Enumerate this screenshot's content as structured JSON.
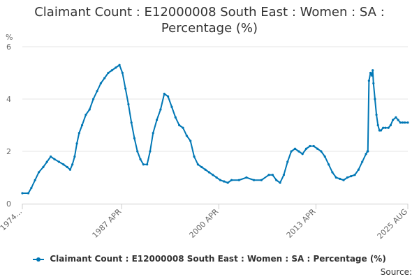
{
  "title_line1": "Claimant Count : E12000008 South East : Women : SA :",
  "title_line2": "Percentage (%)",
  "source_label": "Source:",
  "legend_label": "Claimant Count : E12000008 South East : Women : SA : Percentage (%)",
  "chart_data": {
    "type": "line",
    "title": "Claimant Count : E12000008 South East : Women : SA : Percentage (%)",
    "ylabel": "%",
    "xlabel": "",
    "ylim": [
      0,
      6
    ],
    "yticks": [
      0,
      2,
      4,
      6
    ],
    "xlim": [
      1974.0,
      2025.6
    ],
    "xtick_labels": [
      {
        "x": 1974.0,
        "label": "1974..."
      },
      {
        "x": 1987.3,
        "label": "1987 APR"
      },
      {
        "x": 2000.3,
        "label": "2000 APR"
      },
      {
        "x": 2013.3,
        "label": "2013 APR"
      },
      {
        "x": 2025.6,
        "label": "2025 AUG"
      }
    ],
    "grid": "horizontal",
    "legend_position": "bottom",
    "line_color": "#0077b5",
    "series": [
      {
        "name": "Claimant Count : E12000008 South East : Women : SA : Percentage (%)",
        "x": [
          1974.0,
          1974.8,
          1975.2,
          1975.7,
          1976.2,
          1976.8,
          1977.3,
          1977.8,
          1978.3,
          1978.9,
          1979.5,
          1980.0,
          1980.4,
          1980.7,
          1981.0,
          1981.3,
          1981.6,
          1982.0,
          1982.5,
          1983.0,
          1983.5,
          1984.0,
          1984.5,
          1985.0,
          1985.5,
          1986.0,
          1986.5,
          1987.0,
          1987.4,
          1987.8,
          1988.2,
          1988.6,
          1989.0,
          1989.4,
          1989.8,
          1990.2,
          1990.7,
          1991.1,
          1991.5,
          1992.0,
          1992.5,
          1993.0,
          1993.5,
          1994.0,
          1994.5,
          1995.0,
          1995.5,
          1996.0,
          1996.5,
          1997.0,
          1997.5,
          1998.0,
          1998.5,
          1999.0,
          1999.5,
          2000.0,
          2000.5,
          2001.0,
          2001.5,
          2002.0,
          2003.0,
          2004.0,
          2005.0,
          2006.0,
          2007.0,
          2007.5,
          2008.0,
          2008.5,
          2009.0,
          2009.5,
          2010.0,
          2010.5,
          2011.0,
          2011.5,
          2012.0,
          2012.5,
          2013.0,
          2013.5,
          2014.0,
          2014.5,
          2015.0,
          2015.5,
          2016.0,
          2016.5,
          2017.0,
          2017.5,
          2018.0,
          2018.5,
          2019.0,
          2019.5,
          2020.0,
          2020.2,
          2020.25,
          2020.4,
          2020.6,
          2020.8,
          2020.9,
          2021.0,
          2021.2,
          2021.4,
          2021.6,
          2021.8,
          2022.0,
          2022.3,
          2022.6,
          2023.0,
          2023.3,
          2023.6,
          2024.0,
          2024.3,
          2024.6,
          2024.9,
          2025.2,
          2025.6
        ],
        "values": [
          0.4,
          0.4,
          0.6,
          0.9,
          1.2,
          1.4,
          1.6,
          1.8,
          1.7,
          1.6,
          1.5,
          1.4,
          1.3,
          1.5,
          1.8,
          2.3,
          2.7,
          3.0,
          3.4,
          3.6,
          4.0,
          4.3,
          4.6,
          4.8,
          5.0,
          5.1,
          5.2,
          5.3,
          5.0,
          4.4,
          3.8,
          3.1,
          2.5,
          2.0,
          1.7,
          1.5,
          1.5,
          2.0,
          2.7,
          3.2,
          3.6,
          4.2,
          4.1,
          3.7,
          3.3,
          3.0,
          2.9,
          2.6,
          2.4,
          1.8,
          1.5,
          1.4,
          1.3,
          1.2,
          1.1,
          1.0,
          0.9,
          0.85,
          0.8,
          0.9,
          0.9,
          1.0,
          0.9,
          0.9,
          1.1,
          1.1,
          0.9,
          0.8,
          1.1,
          1.6,
          2.0,
          2.1,
          2.0,
          1.9,
          2.1,
          2.2,
          2.2,
          2.1,
          2.0,
          1.8,
          1.5,
          1.2,
          1.0,
          0.95,
          0.9,
          1.0,
          1.05,
          1.1,
          1.3,
          1.6,
          1.9,
          2.0,
          2.0,
          4.7,
          5.0,
          4.9,
          5.1,
          4.6,
          4.0,
          3.4,
          3.0,
          2.8,
          2.8,
          2.9,
          2.9,
          2.9,
          3.0,
          3.2,
          3.3,
          3.2,
          3.1,
          3.1,
          3.1,
          3.1
        ]
      }
    ]
  }
}
